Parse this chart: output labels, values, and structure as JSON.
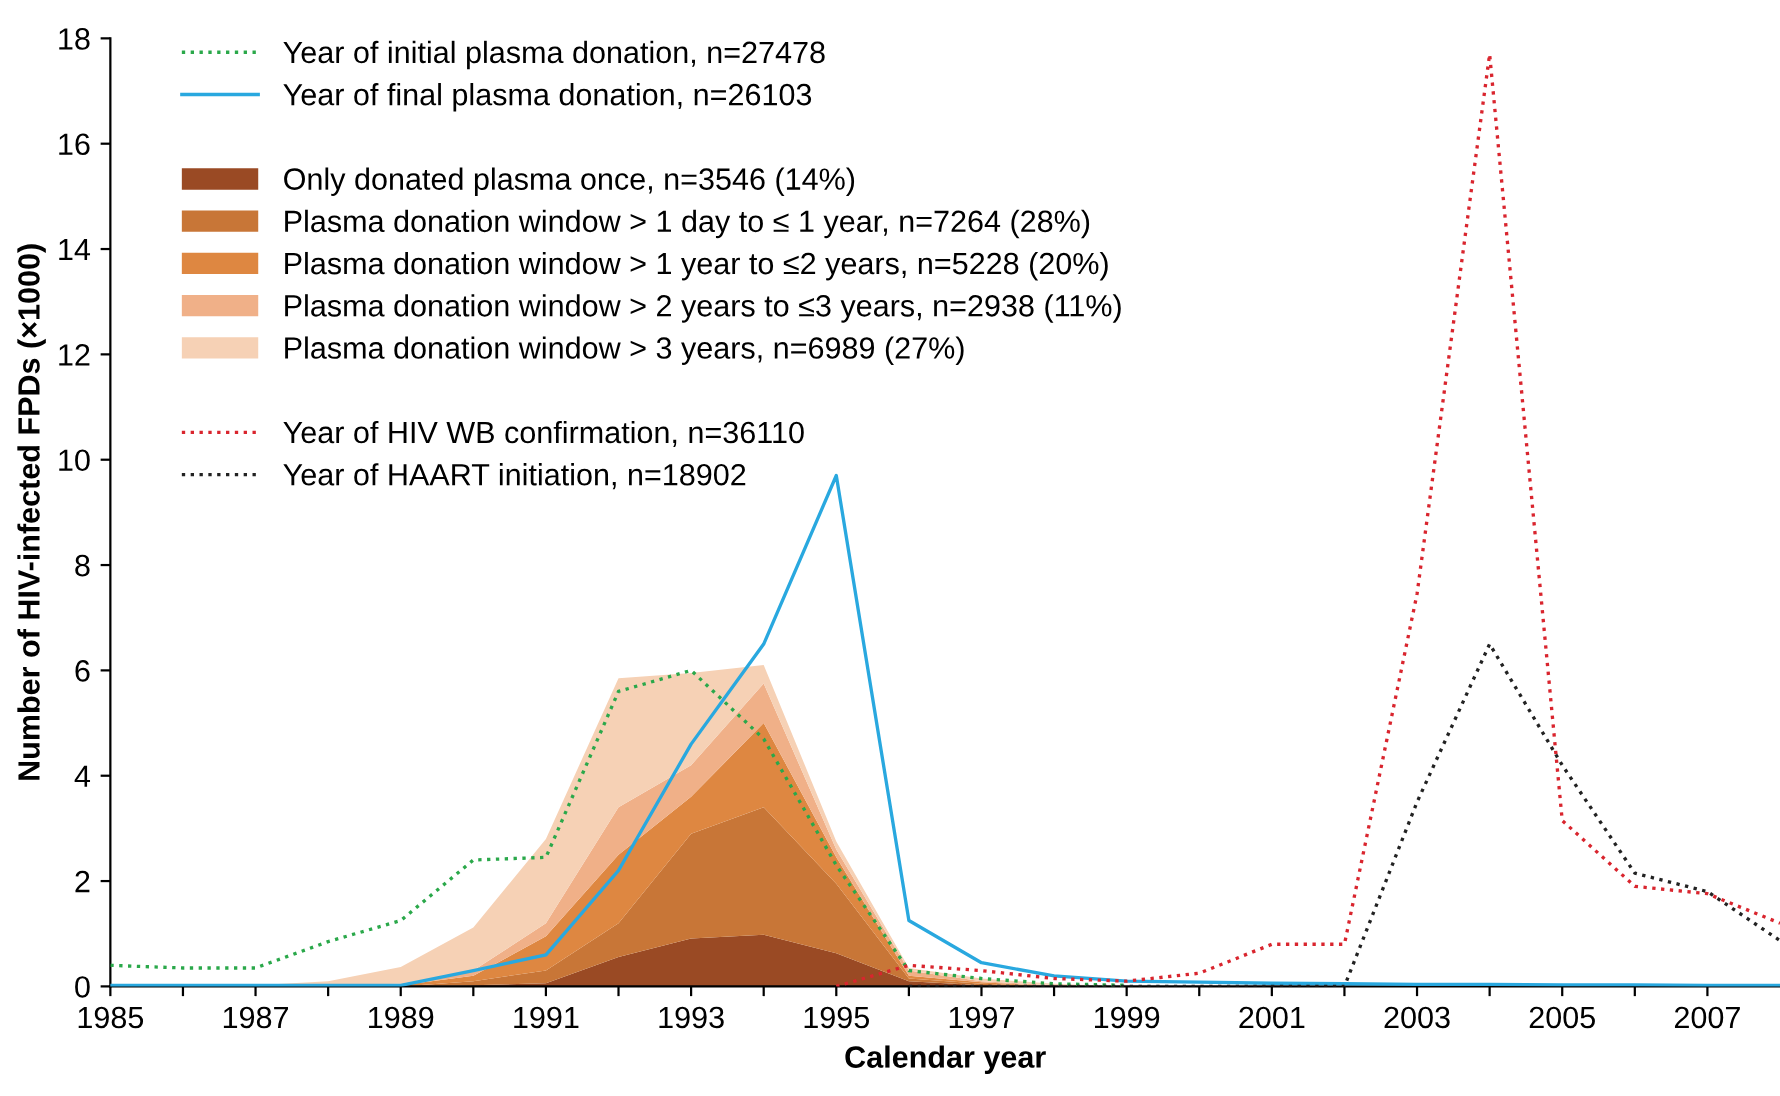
{
  "chart_data": {
    "type": "line",
    "xlabel": "Calendar year",
    "ylabel": "Number of HIV-infected FPDs (×1000)",
    "xlim": [
      1985,
      2008
    ],
    "ylim": [
      0,
      18
    ],
    "xticks": [
      1985,
      {
        "value": 1986,
        "label": null
      },
      1987,
      {
        "value": 1988,
        "label": null
      },
      1989,
      {
        "value": 1990,
        "label": null
      },
      1991,
      {
        "value": 1992,
        "label": null
      },
      1993,
      {
        "value": 1994,
        "label": null
      },
      1995,
      {
        "value": 1996,
        "label": null
      },
      1997,
      {
        "value": 1998,
        "label": null
      },
      1999,
      {
        "value": 2000,
        "label": null
      },
      2001,
      {
        "value": 2002,
        "label": null
      },
      2003,
      {
        "value": 2004,
        "label": null
      },
      2005,
      {
        "value": 2006,
        "label": null
      },
      2007
    ],
    "yticks": [
      0,
      2,
      4,
      6,
      8,
      10,
      12,
      14,
      16,
      18
    ],
    "grid": false,
    "legend": "top left",
    "stacked": true,
    "series": [
      {
        "name": "Year of initial plasma donation, n=27478",
        "line_style": "dotted",
        "color": "#2aa84a",
        "x": [
          1985,
          1986,
          1987,
          1988,
          1989,
          1990,
          1991,
          1992,
          1993,
          1994,
          1995,
          1996,
          1997,
          1998,
          1999
        ],
        "values": [
          0.4,
          0.35,
          0.35,
          0.85,
          1.25,
          2.4,
          2.45,
          5.6,
          6.0,
          4.7,
          2.3,
          0.3,
          0.15,
          0.05,
          0.02
        ]
      },
      {
        "name": "Year of final plasma donation, n=26103",
        "line_style": "solid",
        "color": "#29a8df",
        "x": [
          1985,
          1986,
          1987,
          1988,
          1989,
          1990,
          1991,
          1992,
          1993,
          1994,
          1995,
          1996,
          1997,
          1998,
          1999,
          2000,
          2001,
          2002,
          2003,
          2004,
          2005,
          2006,
          2007,
          2008
        ],
        "values": [
          0.02,
          0.02,
          0.02,
          0.02,
          0.02,
          0.3,
          0.6,
          2.2,
          4.6,
          6.5,
          9.7,
          1.25,
          0.45,
          0.2,
          0.1,
          0.08,
          0.06,
          0.05,
          0.04,
          0.04,
          0.03,
          0.03,
          0.02,
          0.02
        ]
      },
      {
        "name": "Only donated plasma once, n=3546 (14%)",
        "type": "area",
        "color": "#9a4a24",
        "x": [
          1987,
          1988,
          1989,
          1990,
          1991,
          1992,
          1993,
          1994,
          1995,
          1996,
          1997,
          1998,
          1999
        ],
        "values": [
          0,
          0,
          0,
          0.02,
          0.06,
          0.56,
          0.91,
          0.98,
          0.63,
          0.1,
          0.02,
          0,
          0
        ]
      },
      {
        "name": "Plasma donation window > 1 day to ≤ 1 year, n=7264 (28%)",
        "type": "area",
        "color": "#c87637",
        "x": [
          1987,
          1988,
          1989,
          1990,
          1991,
          1992,
          1993,
          1994,
          1995,
          1996,
          1997,
          1998,
          1999
        ],
        "values": [
          0,
          0,
          0,
          0.08,
          0.24,
          0.64,
          1.99,
          2.42,
          1.32,
          0.05,
          0.03,
          0,
          0
        ]
      },
      {
        "name": "Plasma donation window > 1 year to ≤2 years, n=5228 (20%)",
        "type": "area",
        "color": "#de8741",
        "x": [
          1987,
          1988,
          1989,
          1990,
          1991,
          1992,
          1993,
          1994,
          1995,
          1996,
          1997,
          1998,
          1999
        ],
        "values": [
          0,
          0,
          0.02,
          0.1,
          0.65,
          1.3,
          0.7,
          1.6,
          0.5,
          0.05,
          0.03,
          0,
          0
        ]
      },
      {
        "name": "Plasma donation window > 2 years to ≤3 years, n=2938 (11%)",
        "type": "area",
        "color": "#f0b088",
        "x": [
          1987,
          1988,
          1989,
          1990,
          1991,
          1992,
          1993,
          1994,
          1995,
          1996,
          1997,
          1998,
          1999
        ],
        "values": [
          0,
          0.02,
          0.03,
          0.1,
          0.25,
          0.9,
          0.6,
          0.75,
          0.15,
          0.1,
          0.02,
          0.02,
          0
        ]
      },
      {
        "name": "Plasma donation window > 3 years, n=6989 (27%)",
        "type": "area",
        "color": "#f6d1b5",
        "x": [
          1987,
          1988,
          1989,
          1990,
          1991,
          1992,
          1993,
          1994,
          1995,
          1996,
          1997,
          1998,
          1999
        ],
        "values": [
          0.02,
          0.08,
          0.32,
          0.82,
          1.6,
          2.45,
          1.75,
          0.35,
          0.15,
          0.05,
          0.05,
          0.03,
          0
        ]
      },
      {
        "name": "Year of HIV WB confirmation, n=36110",
        "line_style": "dotted",
        "color": "#d9252e",
        "x": [
          1995,
          1996,
          1997,
          1998,
          1999,
          2000,
          2001,
          2002,
          2003,
          2004,
          2005,
          2006,
          2007,
          2008
        ],
        "values": [
          0,
          0.4,
          0.3,
          0.15,
          0.1,
          0.25,
          0.8,
          0.8,
          7.45,
          17.7,
          3.15,
          1.9,
          1.76,
          1.2
        ]
      },
      {
        "name": "Year of HAART initiation, n=18902",
        "line_style": "dotted",
        "color": "#222222",
        "x": [
          1996,
          1997,
          1998,
          1999,
          2000,
          2001,
          2002,
          2003,
          2004,
          2005,
          2006,
          2007,
          2008
        ],
        "values": [
          0,
          0,
          0,
          0,
          0,
          0,
          0,
          3.5,
          6.5,
          4.2,
          2.15,
          1.8,
          0.87
        ]
      }
    ]
  }
}
